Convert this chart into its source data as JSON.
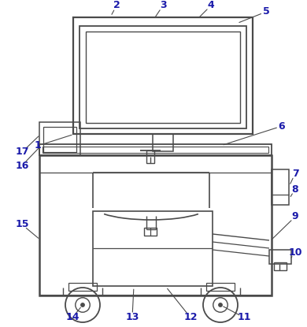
{
  "background_color": "#ffffff",
  "line_color": "#4a4a4a",
  "label_color": "#1a1aaa",
  "figsize": [
    3.9,
    4.15
  ],
  "dpi": 100
}
